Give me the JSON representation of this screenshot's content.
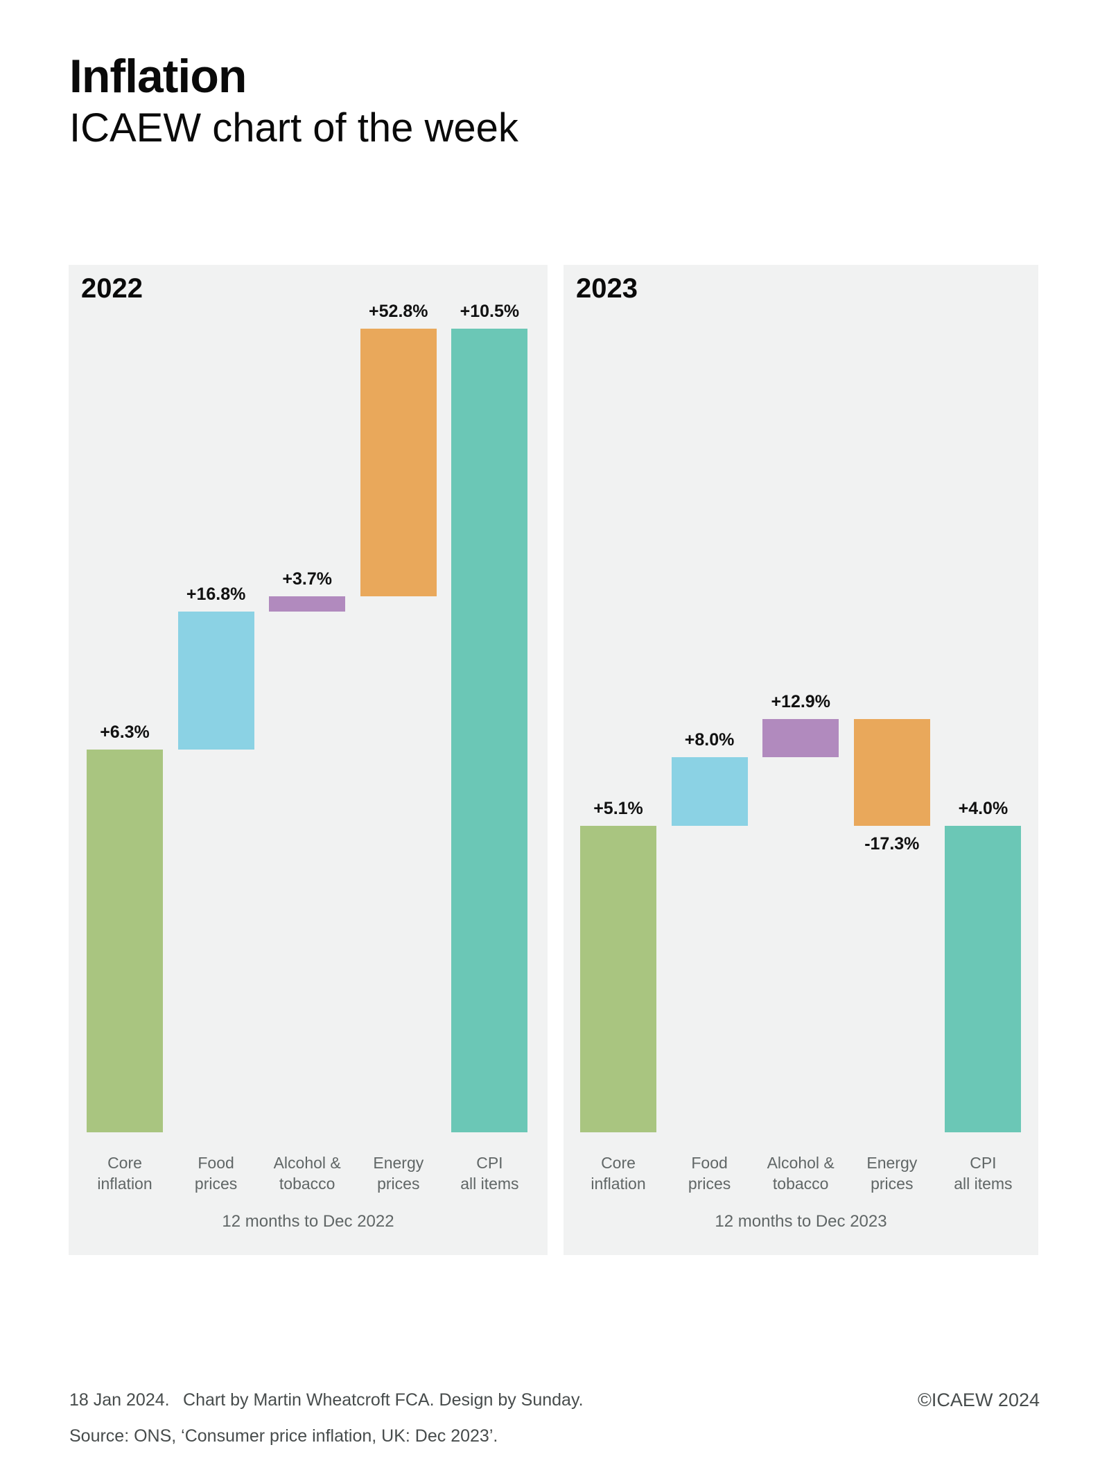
{
  "header": {
    "title": "Inflation",
    "subtitle": "ICAEW chart of the week"
  },
  "colors": {
    "green": "#a9c580",
    "blue": "#8bd2e4",
    "purple": "#b18abe",
    "orange": "#e9a85b",
    "teal": "#6bc7b6",
    "panel_bg": "#f1f2f2",
    "value_label": "#111111",
    "category_label": "#606666",
    "footer_text": "#474c4c"
  },
  "chart_data": [
    {
      "type": "bar",
      "variant": "waterfall-contribution",
      "panel_label": "2022",
      "xlabel": "12 months to Dec 2022",
      "ylim": [
        0,
        10.5
      ],
      "categories": [
        "Core\ninflation",
        "Food\nprices",
        "Alcohol &\ntobacco",
        "Energy\nprices",
        "CPI\nall items"
      ],
      "segments": [
        {
          "category": "Core\ninflation",
          "value_label": "+6.3%",
          "value_pct": 6.3,
          "contribution_pp": 5.0,
          "color": "green"
        },
        {
          "category": "Food\nprices",
          "value_label": "+16.8%",
          "value_pct": 16.8,
          "contribution_pp": 1.8,
          "color": "blue"
        },
        {
          "category": "Alcohol &\ntobacco",
          "value_label": "+3.7%",
          "value_pct": 3.7,
          "contribution_pp": 0.2,
          "color": "purple"
        },
        {
          "category": "Energy\nprices",
          "value_label": "+52.8%",
          "value_pct": 52.8,
          "contribution_pp": 3.5,
          "color": "orange"
        },
        {
          "category": "CPI\nall items",
          "value_label": "+10.5%",
          "value_pct": 10.5,
          "contribution_pp": 10.5,
          "color": "teal",
          "is_total": true
        }
      ]
    },
    {
      "type": "bar",
      "variant": "waterfall-contribution",
      "panel_label": "2023",
      "xlabel": "12 months to Dec 2023",
      "ylim": [
        0,
        10.5
      ],
      "categories": [
        "Core\ninflation",
        "Food\nprices",
        "Alcohol &\ntobacco",
        "Energy\nprices",
        "CPI\nall items"
      ],
      "segments": [
        {
          "category": "Core\ninflation",
          "value_label": "+5.1%",
          "value_pct": 5.1,
          "contribution_pp": 4.0,
          "color": "green"
        },
        {
          "category": "Food\nprices",
          "value_label": "+8.0%",
          "value_pct": 8.0,
          "contribution_pp": 0.9,
          "color": "blue"
        },
        {
          "category": "Alcohol &\ntobacco",
          "value_label": "+12.9%",
          "value_pct": 12.9,
          "contribution_pp": 0.5,
          "color": "purple"
        },
        {
          "category": "Energy\nprices",
          "value_label": "-17.3%",
          "value_pct": -17.3,
          "contribution_pp": -1.4,
          "color": "orange"
        },
        {
          "category": "CPI\nall items",
          "value_label": "+4.0%",
          "value_pct": 4.0,
          "contribution_pp": 4.0,
          "color": "teal",
          "is_total": true
        }
      ]
    }
  ],
  "footer": {
    "line1": "18 Jan 2024.  Chart by Martin Wheatcroft FCA. Design by Sunday.",
    "line2": "Source: ONS, ‘Consumer price inflation, UK: Dec 2023’.",
    "copyright": "©ICAEW 2024"
  }
}
